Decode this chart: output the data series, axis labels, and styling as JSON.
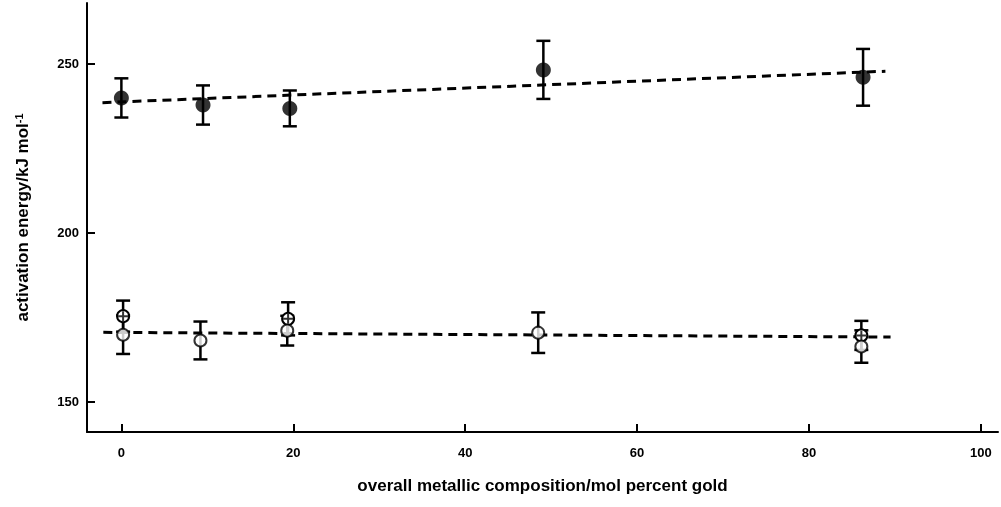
{
  "chart_data": {
    "type": "scatter",
    "xlabel": "overall metallic composition/mol percent gold",
    "ylabel": "activation energy/kJ mol$^{-1}$",
    "xlim": [
      -4,
      102
    ],
    "xticks": [
      0,
      20,
      40,
      60,
      80,
      100
    ],
    "ylim": [
      141,
      268
    ],
    "yticks": [
      150,
      200,
      250
    ],
    "grid": false,
    "marker": "circle",
    "series": [
      {
        "color": "#000000",
        "x": [
          0,
          9.5,
          19.6,
          49.1,
          86.3
        ],
        "values": [
          239.9,
          237.8,
          236.8,
          248.2,
          246.0
        ],
        "errors": [
          5.8,
          5.8,
          5.3,
          8.6,
          8.4
        ]
      },
      {
        "color": "#000000",
        "x": [
          0.2,
          9.2,
          19.3,
          48.5,
          86.1
        ],
        "values": [
          169.8,
          168.1,
          171.0,
          170.4,
          166.3
        ],
        "errors": [
          5.7,
          5.6,
          4.4,
          6.0,
          4.8
        ]
      },
      {
        "color": "#000000",
        "marker": "cross",
        "x": [
          0.2,
          19.4,
          86.1
        ],
        "values": [
          175.3,
          174.5,
          169.6
        ],
        "errors": [
          4.6,
          4.9,
          4.3
        ]
      },
      {
        "type": "line",
        "color": "#000000",
        "marker": "none",
        "line_style": "dashed",
        "x": [
          -2.2,
          88.9
        ],
        "values": [
          238.5,
          247.8
        ]
      },
      {
        "type": "line",
        "color": "#000000",
        "marker": "none",
        "line_style": "dashed",
        "x": [
          -2.1,
          89.5
        ],
        "values": [
          170.5,
          169.1
        ]
      }
    ]
  }
}
